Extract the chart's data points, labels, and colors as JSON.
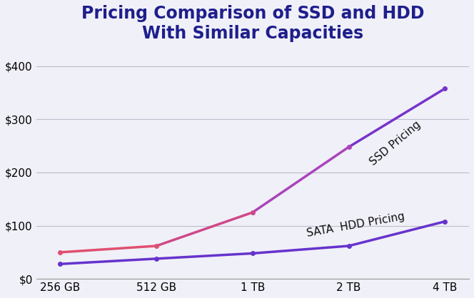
{
  "title": "Pricing Comparison of SSD and HDD\nWith Similar Capacities",
  "title_color": "#1e1e8c",
  "title_fontsize": 17,
  "title_fontweight": "bold",
  "categories": [
    "256 GB",
    "512 GB",
    "1 TB",
    "2 TB",
    "4 TB"
  ],
  "ssd_values": [
    50,
    62,
    125,
    248,
    358
  ],
  "hdd_values": [
    28,
    38,
    48,
    62,
    108
  ],
  "ssd_color_start": "#e05070",
  "ssd_color_end": "#7733cc",
  "hdd_color": "#6633cc",
  "ssd_label": "SSD Pricing",
  "hdd_label": "SATA  HDD Pricing",
  "ylim": [
    0,
    430
  ],
  "yticks": [
    0,
    100,
    200,
    300,
    400
  ],
  "ytick_labels": [
    "$0",
    "$100",
    "$200",
    "$300",
    "$400"
  ],
  "linewidth": 2.5,
  "background_color": "#f0f0f8",
  "annotation_fontsize": 11,
  "annotation_color": "#111111",
  "grid_color": "#bbbbcc",
  "grid_linestyle": "-",
  "grid_linewidth": 0.8,
  "figsize": [
    6.64,
    4.18
  ],
  "dpi": 100
}
